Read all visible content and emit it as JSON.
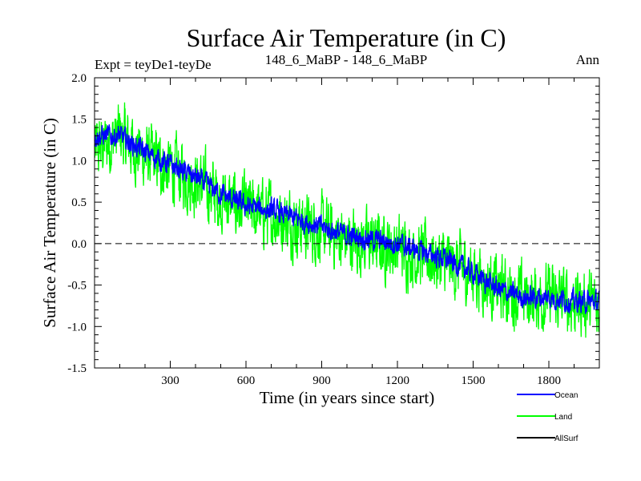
{
  "chart_data": {
    "type": "line",
    "title": "Surface Air Temperature (in C)",
    "subtitle_left": "Expt = teyDe1-teyDe",
    "subtitle_center": "148_6_MaBP - 148_6_MaBP",
    "subtitle_right": "Ann",
    "xlabel": "Time (in years since start)",
    "ylabel": "Surface Air Temperature (in C)",
    "xlim": [
      0,
      2000
    ],
    "ylim": [
      -1.5,
      2.0
    ],
    "x_ticks": [
      300,
      600,
      900,
      1200,
      1500,
      1800
    ],
    "x_tick_labels": [
      "300",
      "600",
      "900",
      "1200",
      "1500",
      "1800"
    ],
    "y_ticks": [
      -1.5,
      -1.0,
      -0.5,
      0.0,
      0.5,
      1.0,
      1.5,
      2.0
    ],
    "y_tick_labels": [
      "-1.5",
      "-1.0",
      "-0.5",
      "0.0",
      "0.5",
      "1.0",
      "1.5",
      "2.0"
    ],
    "reference_line": 0.0,
    "series": [
      {
        "name": "Land",
        "color": "#00ff00",
        "x": [
          0,
          100,
          200,
          300,
          400,
          500,
          600,
          700,
          800,
          900,
          1000,
          1100,
          1200,
          1300,
          1400,
          1500,
          1600,
          1700,
          1800,
          1900,
          2000
        ],
        "values": [
          1.1,
          1.3,
          1.05,
          0.9,
          0.75,
          0.55,
          0.4,
          0.35,
          0.25,
          0.15,
          0.05,
          0.0,
          -0.05,
          -0.15,
          -0.25,
          -0.35,
          -0.55,
          -0.65,
          -0.65,
          -0.7,
          -0.75
        ],
        "noise": 0.3
      },
      {
        "name": "Ocean",
        "color": "#0000ff",
        "x": [
          0,
          100,
          200,
          300,
          400,
          500,
          600,
          700,
          800,
          900,
          1000,
          1100,
          1200,
          1300,
          1400,
          1500,
          1600,
          1700,
          1800,
          1900,
          2000
        ],
        "values": [
          1.3,
          1.3,
          1.1,
          0.95,
          0.8,
          0.6,
          0.45,
          0.4,
          0.3,
          0.2,
          0.1,
          0.05,
          0.0,
          -0.1,
          -0.2,
          -0.35,
          -0.55,
          -0.65,
          -0.65,
          -0.7,
          -0.7
        ],
        "noise": 0.1
      }
    ],
    "legend": [
      {
        "label": "Ocean",
        "color": "#0000ff"
      },
      {
        "label": "Land",
        "color": "#00ff00"
      },
      {
        "label": "AllSurf",
        "color": "#000000"
      }
    ]
  }
}
